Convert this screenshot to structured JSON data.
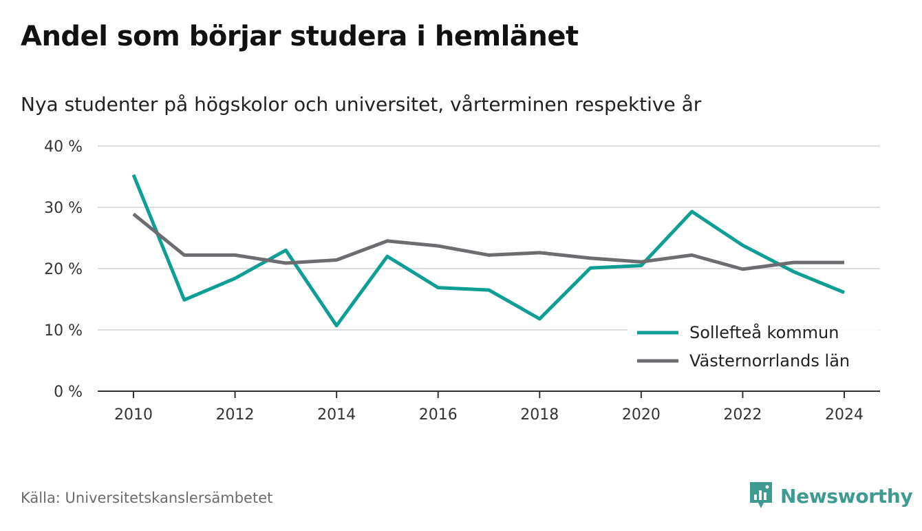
{
  "header": {
    "title": "Andel som börjar studera i hemlänet",
    "subtitle": "Nya studenter på högskolor och universitet, vårterminen respektive år"
  },
  "footer": {
    "source": "Källa: Universitetskanslersämbetet",
    "brand": "Newsworthy"
  },
  "colors": {
    "series_1": "#0f9e93",
    "series_2": "#6d6c70",
    "gridline": "#dddddd",
    "axis": "#333333",
    "brand": "#3d9b92"
  },
  "chart_data": {
    "type": "line",
    "title": "Andel som börjar studera i hemlänet",
    "subtitle": "Nya studenter på högskolor och universitet, vårterminen respektive år",
    "x": [
      2010,
      2011,
      2012,
      2013,
      2014,
      2015,
      2016,
      2017,
      2018,
      2019,
      2020,
      2021,
      2022,
      2023,
      2024
    ],
    "x_ticks": [
      "2010",
      "2012",
      "2014",
      "2016",
      "2018",
      "2020",
      "2022",
      "2024"
    ],
    "y_ticks": [
      "0 %",
      "10 %",
      "20 %",
      "30 %",
      "40 %"
    ],
    "ylim": [
      0,
      40
    ],
    "grid": true,
    "legend_position": "bottom-right",
    "series": [
      {
        "name": "Sollefteå kommun",
        "color": "#0f9e93",
        "values": [
          35.3,
          14.9,
          18.4,
          23.0,
          10.7,
          22.0,
          16.9,
          16.5,
          11.8,
          20.1,
          20.5,
          29.3,
          23.8,
          19.5,
          16.1
        ]
      },
      {
        "name": "Västernorrlands län",
        "color": "#6d6c70",
        "values": [
          28.9,
          22.2,
          22.2,
          20.9,
          21.4,
          24.5,
          23.7,
          22.2,
          22.6,
          21.7,
          21.1,
          22.2,
          19.9,
          21.0,
          21.0
        ]
      }
    ]
  }
}
